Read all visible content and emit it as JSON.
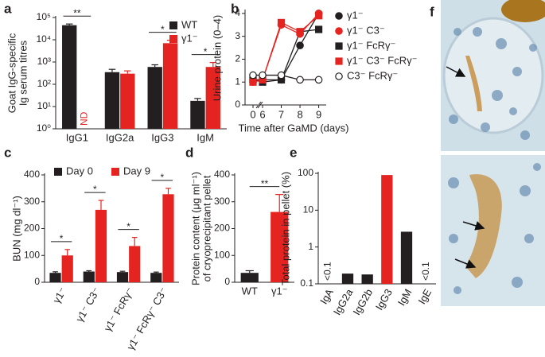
{
  "chart_data": [
    {
      "panel": "a",
      "type": "bar",
      "ylabel": [
        "Goat IgG-specific",
        "Ig serum titres"
      ],
      "categories": [
        "IgG1",
        "IgG2a",
        "IgG3",
        "IgM"
      ],
      "series": [
        {
          "name": "WT",
          "color": "#231f20",
          "values": [
            45000,
            350,
            600,
            18
          ],
          "errors": [
            6000,
            120,
            150,
            5
          ]
        },
        {
          "name": "γ1⁻",
          "color": "#e52421",
          "values": [
            null,
            300,
            7000,
            600
          ],
          "value_labels": [
            "ND",
            null,
            null,
            null
          ],
          "errors": [
            null,
            100,
            2500,
            350
          ]
        }
      ],
      "log": true,
      "ylim": [
        1,
        100000
      ],
      "yticks": [
        {
          "value": 1,
          "label": "10⁰"
        },
        {
          "value": 10,
          "label": "10¹"
        },
        {
          "value": 100,
          "label": "10²"
        },
        {
          "value": 1000,
          "label": "10³"
        },
        {
          "value": 10000,
          "label": "10⁴"
        },
        {
          "value": 100000,
          "label": "10⁵"
        }
      ],
      "significance": [
        "**",
        null,
        "*",
        "*"
      ],
      "legend": "upper-right"
    },
    {
      "panel": "b",
      "type": "line",
      "ylabel": [
        "Urine protein (0–4)"
      ],
      "xlabel": "Time after GaMD (days)",
      "x": [
        0,
        6,
        7,
        8,
        9
      ],
      "xlim": [
        0,
        9.4
      ],
      "xticks": [
        0,
        6,
        7,
        8,
        9
      ],
      "ylim": [
        0,
        4.1
      ],
      "yticks": [
        0,
        1,
        2,
        3,
        4
      ],
      "series": [
        {
          "name": "γ1⁻",
          "color": "#231f20",
          "marker": "circle",
          "values": [
            1.1,
            1.1,
            1.1,
            2.6,
            4.0
          ]
        },
        {
          "name": "γ1⁻ C3⁻",
          "color": "#e52421",
          "marker": "circle",
          "values": [
            1.0,
            1.1,
            3.5,
            3.1,
            4.0
          ]
        },
        {
          "name": "γ1⁻ FcRγ⁻",
          "color": "#231f20",
          "marker": "square",
          "values": [
            1.1,
            1.0,
            1.1,
            3.2,
            3.3
          ]
        },
        {
          "name": "γ1⁻ C3⁻ FcRγ⁻",
          "color": "#e52421",
          "marker": "square",
          "values": [
            1.0,
            1.1,
            3.6,
            3.2,
            3.9
          ]
        },
        {
          "name": "C3⁻ FcRγ⁻",
          "color": "#231f20",
          "marker": "circle",
          "open": true,
          "values": [
            1.3,
            1.3,
            1.3,
            1.1,
            1.1
          ]
        }
      ],
      "legend": "right"
    },
    {
      "panel": "c",
      "type": "bar",
      "ylabel": [
        "BUN (mg dl⁻¹)"
      ],
      "categories": [
        "γ1⁻",
        "γ1⁻ C3⁻",
        "γ1⁻ FcRγ⁻",
        "γ1⁻ FcRγ⁻ C3⁻"
      ],
      "series": [
        {
          "name": "Day 0",
          "color": "#231f20",
          "values": [
            35,
            40,
            38,
            35
          ],
          "errors": [
            4,
            3,
            3,
            3
          ]
        },
        {
          "name": "Day 9",
          "color": "#e52421",
          "values": [
            100,
            270,
            135,
            328
          ],
          "errors": [
            22,
            35,
            32,
            22
          ]
        }
      ],
      "ylim": [
        0,
        400
      ],
      "yticks": [
        0,
        100,
        200,
        300,
        400
      ],
      "significance": [
        "*",
        "*",
        "*",
        "*"
      ],
      "legend": "top",
      "rotate_labels": true
    },
    {
      "panel": "d",
      "type": "bar",
      "ylabel": [
        "Protein content (μg ml⁻¹)",
        "of cryoprecipitant pellet"
      ],
      "categories": [
        "WT",
        "γ1⁻"
      ],
      "values": [
        35,
        262
      ],
      "errors": [
        8,
        65
      ],
      "colors": [
        "#231f20",
        "#e52421"
      ],
      "ylim": [
        0,
        400
      ],
      "yticks": [
        0,
        100,
        200,
        300,
        400
      ],
      "significance": "**"
    },
    {
      "panel": "e",
      "type": "bar",
      "ylabel": [
        "Total protein in pellet (%)"
      ],
      "categories": [
        "IgA",
        "IgG2a",
        "IgG2b",
        "IgG3",
        "IgM",
        "IgE"
      ],
      "values": [
        null,
        0.19,
        0.18,
        90,
        2.6,
        null
      ],
      "value_labels": [
        "<0.1",
        null,
        null,
        null,
        null,
        "<0.1"
      ],
      "colors": [
        "#231f20",
        "#231f20",
        "#231f20",
        "#e52421",
        "#231f20",
        "#231f20"
      ],
      "log": true,
      "ylim": [
        0.1,
        100
      ],
      "yticks": [
        0.1,
        1,
        10,
        100
      ],
      "rotate_labels": true
    }
  ],
  "image_panel": {
    "panel": "f"
  }
}
